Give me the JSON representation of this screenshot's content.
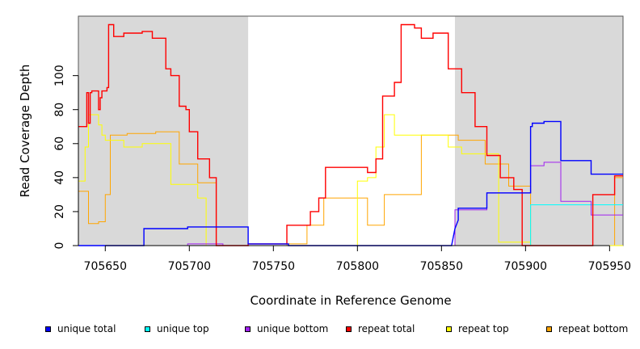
{
  "chart_data": {
    "type": "line",
    "xlabel": "Coordinate in Reference Genome",
    "ylabel": "Read Coverage Depth",
    "xlim": [
      705634,
      705958
    ],
    "ylim": [
      0,
      135
    ],
    "xticks": [
      705650,
      705700,
      705750,
      705800,
      705850,
      705900,
      705950
    ],
    "xtick_labels": [
      "705650",
      "705700",
      "705750",
      "705800",
      "705850",
      "705900",
      "705950"
    ],
    "yticks": [
      0,
      20,
      40,
      60,
      80,
      100
    ],
    "ytick_labels": [
      "0",
      "20",
      "40",
      "60",
      "80",
      "100"
    ],
    "shaded_regions": [
      [
        705634,
        705735
      ],
      [
        705858,
        705958
      ]
    ],
    "shade_color": "#d9d9d9",
    "series": [
      {
        "name": "unique total",
        "color": "#0000ff",
        "x": [
          705634,
          705673,
          705673,
          705699,
          705699,
          705735,
          705735,
          705759,
          705759,
          705856,
          705858,
          705860,
          705860,
          705877,
          705877,
          705903,
          705903,
          705904,
          705904,
          705911,
          705911,
          705921,
          705921,
          705939,
          705939,
          705958
        ],
        "y": [
          0,
          0,
          10,
          10,
          11,
          11,
          1,
          1,
          0,
          0,
          10,
          15,
          22,
          22,
          31,
          31,
          70,
          70,
          72,
          72,
          73,
          73,
          50,
          50,
          42,
          42
        ]
      },
      {
        "name": "unique top",
        "color": "#00ffff",
        "x": [
          705634,
          705858,
          705858,
          705903,
          705903,
          705958
        ],
        "y": [
          0,
          0,
          0,
          0,
          24,
          24
        ]
      },
      {
        "name": "unique bottom",
        "color": "#a020f0",
        "x": [
          705634,
          705699,
          705699,
          705720,
          705720,
          705858,
          705858,
          705877,
          705877,
          705903,
          705903,
          705911,
          705911,
          705921,
          705921,
          705939,
          705939,
          705958
        ],
        "y": [
          0,
          0,
          1,
          1,
          0,
          0,
          21,
          21,
          31,
          31,
          47,
          47,
          49,
          49,
          26,
          26,
          18,
          18
        ]
      },
      {
        "name": "repeat total",
        "color": "#ff0000",
        "x": [
          705634,
          705639,
          705639,
          705640,
          705640,
          705641,
          705641,
          705642,
          705642,
          705646,
          705646,
          705647,
          705647,
          705648,
          705648,
          705651,
          705651,
          705652,
          705652,
          705655,
          705655,
          705661,
          705661,
          705672,
          705672,
          705678,
          705678,
          705686,
          705686,
          705689,
          705689,
          705694,
          705694,
          705698,
          705698,
          705700,
          705700,
          705705,
          705705,
          705712,
          705712,
          705716,
          705716,
          705735,
          705735,
          705758,
          705758,
          705772,
          705772,
          705777,
          705777,
          705781,
          705781,
          705806,
          705806,
          705811,
          705811,
          705815,
          705815,
          705822,
          705822,
          705826,
          705826,
          705834,
          705834,
          705838,
          705838,
          705845,
          705845,
          705854,
          705854,
          705862,
          705862,
          705870,
          705870,
          705877,
          705877,
          705885,
          705885,
          705893,
          705893,
          705898,
          705898,
          705904,
          705904,
          705940,
          705940,
          705953,
          705953,
          705958
        ],
        "y": [
          70,
          70,
          90,
          90,
          72,
          72,
          90,
          90,
          91,
          91,
          80,
          80,
          87,
          87,
          91,
          91,
          93,
          93,
          130,
          130,
          123,
          123,
          125,
          125,
          126,
          126,
          122,
          122,
          104,
          104,
          100,
          100,
          82,
          82,
          80,
          80,
          67,
          67,
          51,
          51,
          40,
          40,
          0,
          0,
          1,
          1,
          12,
          12,
          20,
          20,
          28,
          28,
          46,
          46,
          43,
          43,
          51,
          51,
          88,
          88,
          96,
          96,
          130,
          130,
          128,
          128,
          122,
          122,
          125,
          125,
          104,
          104,
          90,
          90,
          70,
          70,
          53,
          53,
          40,
          40,
          33,
          33,
          0,
          0,
          0,
          0,
          30,
          30,
          41,
          41
        ]
      },
      {
        "name": "repeat top",
        "color": "#ffff00",
        "x": [
          705634,
          705638,
          705638,
          705640,
          705640,
          705646,
          705646,
          705648,
          705648,
          705650,
          705650,
          705661,
          705661,
          705672,
          705672,
          705689,
          705689,
          705705,
          705705,
          705710,
          705710,
          705735,
          705735,
          705800,
          705800,
          705806,
          705806,
          705811,
          705811,
          705816,
          705816,
          705822,
          705822,
          705854,
          705854,
          705862,
          705862,
          705884,
          705884,
          705903,
          705903,
          705958
        ],
        "y": [
          38,
          38,
          58,
          58,
          77,
          77,
          71,
          71,
          65,
          65,
          62,
          62,
          58,
          58,
          60,
          60,
          36,
          36,
          28,
          28,
          0,
          0,
          0,
          0,
          38,
          38,
          40,
          40,
          58,
          58,
          77,
          77,
          65,
          65,
          58,
          58,
          54,
          54,
          2,
          2,
          0,
          0
        ]
      },
      {
        "name": "repeat bottom",
        "color": "#ffa500",
        "x": [
          705634,
          705640,
          705640,
          705646,
          705646,
          705650,
          705650,
          705653,
          705653,
          705663,
          705663,
          705680,
          705680,
          705694,
          705694,
          705705,
          705705,
          705716,
          705716,
          705758,
          705758,
          705770,
          705770,
          705780,
          705780,
          705806,
          705806,
          705816,
          705816,
          705838,
          705838,
          705860,
          705860,
          705876,
          705876,
          705890,
          705890,
          705903,
          705903,
          705940,
          705940,
          705953,
          705953,
          705958
        ],
        "y": [
          32,
          32,
          13,
          13,
          14,
          14,
          30,
          30,
          65,
          65,
          66,
          66,
          67,
          67,
          48,
          48,
          37,
          37,
          0,
          0,
          1,
          1,
          12,
          12,
          28,
          28,
          12,
          12,
          30,
          30,
          65,
          65,
          62,
          62,
          48,
          48,
          35,
          35,
          0,
          0,
          0,
          0,
          40,
          40
        ]
      }
    ]
  },
  "legend": [
    {
      "label": "unique total",
      "color": "#0000ff"
    },
    {
      "label": "unique top",
      "color": "#00ffff"
    },
    {
      "label": "unique bottom",
      "color": "#a020f0"
    },
    {
      "label": "repeat total",
      "color": "#ff0000"
    },
    {
      "label": "repeat top",
      "color": "#ffff00"
    },
    {
      "label": "repeat bottom",
      "color": "#ffa500"
    }
  ]
}
